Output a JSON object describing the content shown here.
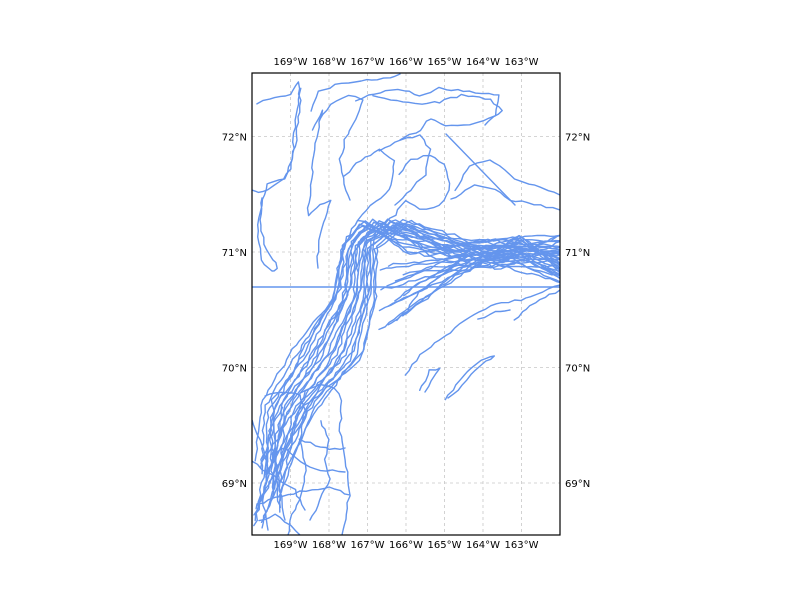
{
  "map": {
    "track_color": "#6495ed",
    "grid": true,
    "lon_ticks": [
      "169°W",
      "168°W",
      "167°W",
      "166°W",
      "165°W",
      "164°W",
      "163°W"
    ],
    "lat_ticks": [
      "72°N",
      "71°N",
      "70°N",
      "69°N"
    ],
    "lon_values": [
      -169,
      -168,
      -167,
      -166,
      -165,
      -164,
      -163
    ],
    "lat_values": [
      72,
      71,
      70,
      69
    ],
    "extent": {
      "lon_min": -170.0,
      "lon_max": -162.0,
      "lat_min": 68.55,
      "lat_max": 72.55
    }
  }
}
